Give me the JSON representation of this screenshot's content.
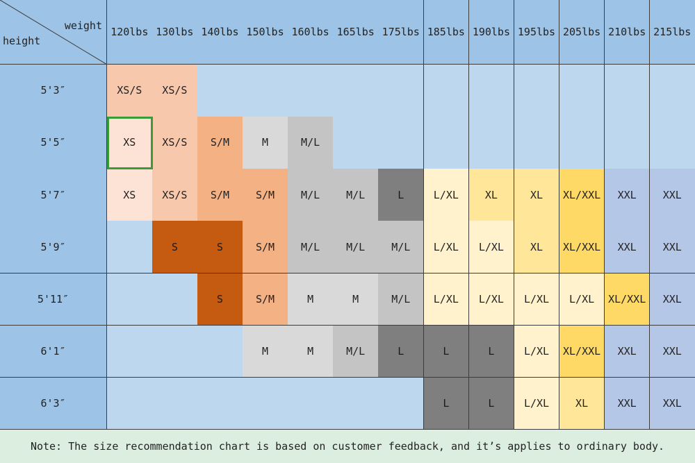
{
  "corner": {
    "weight_label": "weight",
    "height_label": "height"
  },
  "weights": [
    "120lbs",
    "130lbs",
    "140lbs",
    "150lbs",
    "160lbs",
    "165lbs",
    "175lbs",
    "185lbs",
    "190lbs",
    "195lbs",
    "205lbs",
    "210lbs",
    "215lbs"
  ],
  "rows": [
    {
      "height": "5'3″",
      "cells": [
        "XS/S",
        "XS/S",
        "",
        "",
        "",
        "",
        "",
        "",
        "",
        "",
        "",
        "",
        ""
      ]
    },
    {
      "height": "5'5″",
      "cells": [
        "XS",
        "XS/S",
        "S/M",
        "M",
        "M/L",
        "",
        "",
        "",
        "",
        "",
        "",
        "",
        ""
      ]
    },
    {
      "height": "5'7″",
      "cells": [
        "XS",
        "XS/S",
        "S/M",
        "S/M",
        "M/L",
        "M/L",
        "L",
        "L/XL",
        "XL",
        "XL",
        "XL/XXL",
        "XXL",
        "XXL"
      ]
    },
    {
      "height": "5'9″",
      "cells": [
        "",
        "S",
        "S",
        "S/M",
        "M/L",
        "M/L",
        "M/L",
        "L/XL",
        "L/XL",
        "XL",
        "XL/XXL",
        "XXL",
        "XXL"
      ]
    },
    {
      "height": "5'11″",
      "cells": [
        "",
        "",
        "S",
        "S/M",
        "M",
        "M",
        "M/L",
        "L/XL",
        "L/XL",
        "L/XL",
        "L/XL",
        "XL/XXL",
        "XXL"
      ]
    },
    {
      "height": "6'1″",
      "cells": [
        "",
        "",
        "",
        "M",
        "M",
        "M/L",
        "L",
        "L",
        "L",
        "L/XL",
        "XL/XXL",
        "XXL",
        "XXL"
      ]
    },
    {
      "height": "6'3″",
      "cells": [
        "",
        "",
        "",
        "",
        "",
        "",
        "",
        "L",
        "L",
        "L/XL",
        "XL",
        "XXL",
        "XXL"
      ]
    }
  ],
  "colors": {
    "empty": "#bdd7ee",
    "row_header": "#9dc3e6",
    "col_header": "#9dc3e6",
    "XS": "#fde2d6",
    "XS/S": "#f8c8ad",
    "S": "#c55a11",
    "S/M": "#f4b183",
    "M": "#d9d9d9",
    "M/L": "#c4c4c4",
    "L": "#7f7f7f",
    "L/XL": "#fff2cc",
    "XL": "#ffe699",
    "XL/XXL": "#ffd966",
    "XXL": "#b4c7e7"
  },
  "cell_color_overrides": {
    "0-0": "#f8c8ad",
    "0-1": "#f8c8ad",
    "1-1": "#f8c8ad",
    "2-1": "#f8c8ad",
    "2-0": "#fde2d6",
    "4-11": "#ffd966"
  },
  "selected_cell": "1-0",
  "note": "Note: The size recommendation chart is based on customer feedback, and it’s applies to ordinary body."
}
